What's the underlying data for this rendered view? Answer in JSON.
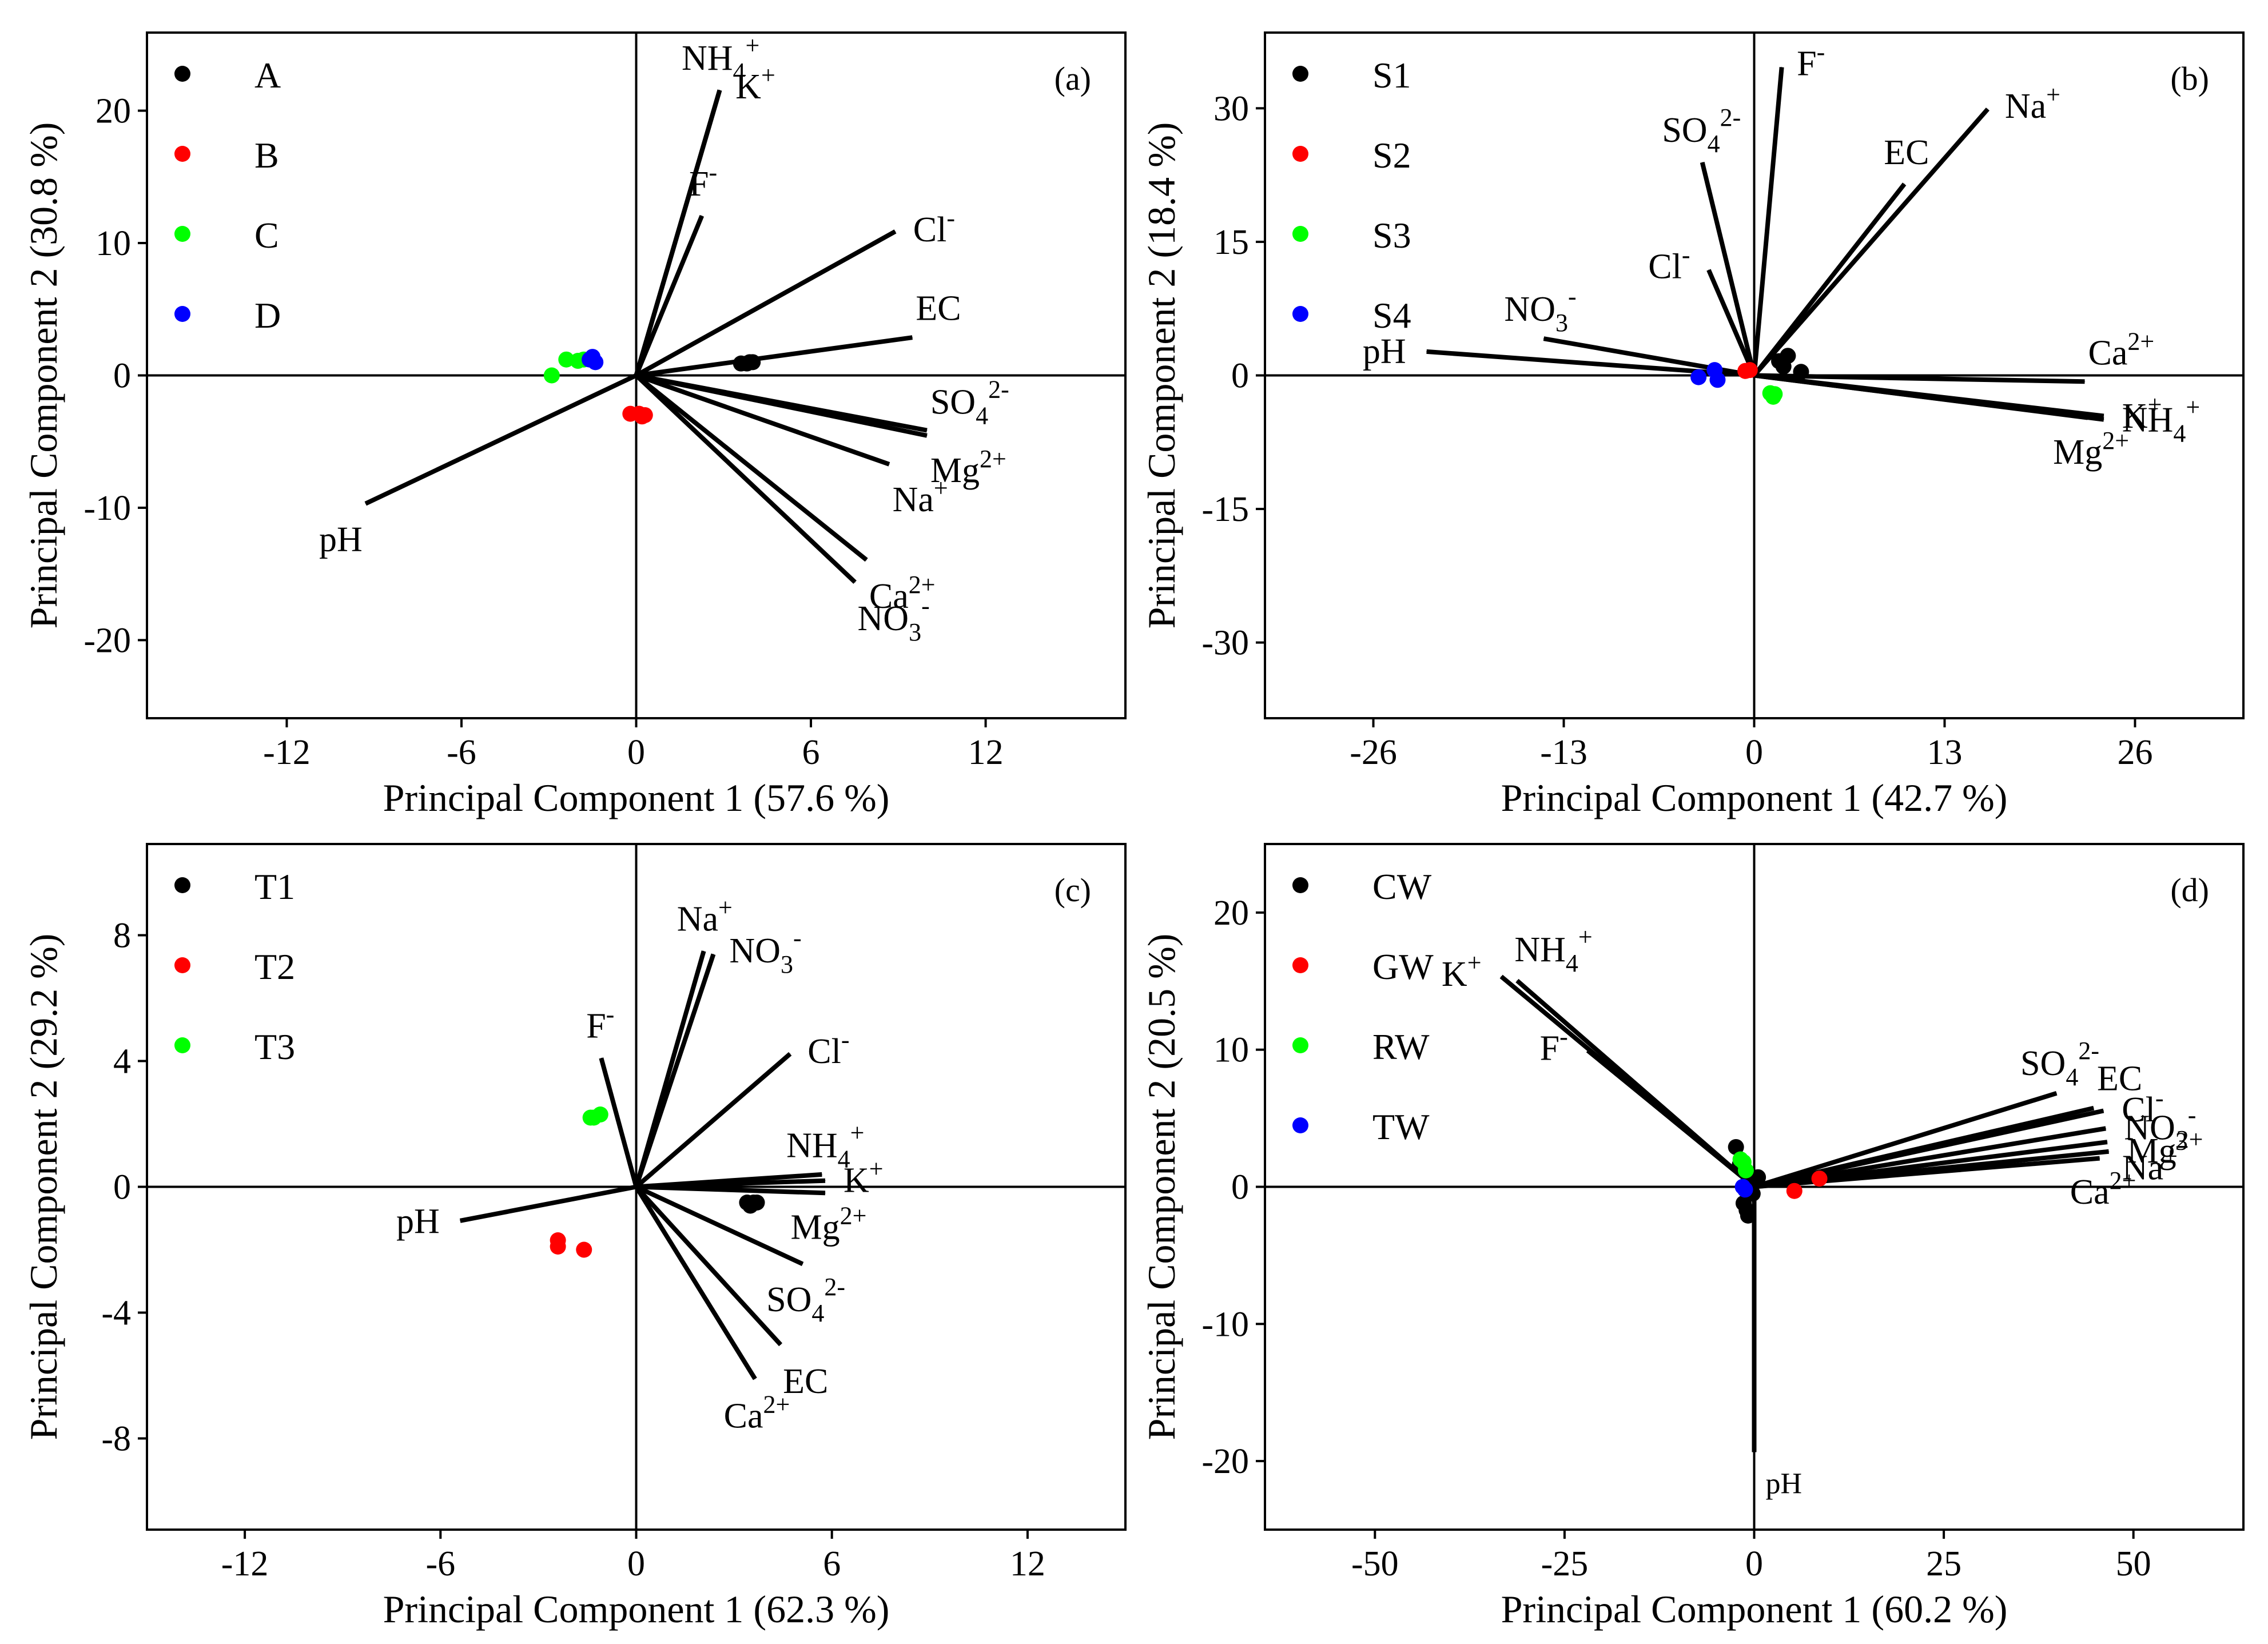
{
  "chart_data": [
    {
      "type": "scatter",
      "panel": "(a)",
      "xlabel": "Principal Component 1 (57.6 %)",
      "ylabel": "Principal Component 2 (30.8 %)",
      "xlim": [
        -16.8,
        16.8
      ],
      "ylim": [
        -25.9,
        25.9
      ],
      "xticks": [
        -12,
        -6,
        0,
        6,
        12
      ],
      "yticks": [
        -20,
        -10,
        0,
        10,
        20
      ],
      "xtick_labels": [
        "-12",
        "-6",
        "0",
        "6",
        "12"
      ],
      "ytick_labels": [
        "-20",
        "-10",
        "0",
        "10",
        "20"
      ],
      "legend_position": "top-left",
      "series": [
        {
          "name": "A",
          "color": "#000000",
          "points": [
            [
              3.6,
              0.9
            ],
            [
              3.9,
              1.0
            ],
            [
              3.8,
              0.9
            ],
            [
              4.0,
              1.0
            ]
          ]
        },
        {
          "name": "B",
          "color": "#ff0000",
          "points": [
            [
              -0.2,
              -2.9
            ],
            [
              0.2,
              -3.1
            ],
            [
              0.3,
              -3.0
            ],
            [
              0.1,
              -2.9
            ]
          ]
        },
        {
          "name": "C",
          "color": "#00ff00",
          "points": [
            [
              -2.9,
              0.0
            ],
            [
              -2.4,
              1.2
            ],
            [
              -2.0,
              1.1
            ],
            [
              -1.8,
              1.2
            ]
          ]
        },
        {
          "name": "D",
          "color": "#0000ff",
          "points": [
            [
              -1.6,
              1.2
            ],
            [
              -1.5,
              1.4
            ],
            [
              -1.4,
              1.0
            ]
          ]
        }
      ],
      "loadings": [
        {
          "label": "pH",
          "sup": "",
          "sub": "",
          "x": -9.4,
          "y": -9.8,
          "label_anchor": "end",
          "label_dir": "below"
        },
        {
          "label": "NH",
          "sub": "4",
          "sup": "+",
          "x": 2.9,
          "y": 21.8,
          "label_anchor": "middle",
          "label_dir": "above"
        },
        {
          "label": "K",
          "sup": "+",
          "sub": "",
          "x": 2.9,
          "y": 21.8,
          "label_anchor": "start",
          "label_dir": "right"
        },
        {
          "label": "F",
          "sup": "-",
          "sub": "",
          "x": 2.3,
          "y": 12.3,
          "label_anchor": "middle",
          "label_dir": "above"
        },
        {
          "label": "Cl",
          "sup": "-",
          "sub": "",
          "x": 9.0,
          "y": 11.0,
          "label_anchor": "start",
          "label_dir": "right"
        },
        {
          "label": "EC",
          "sup": "",
          "sub": "",
          "x": 9.6,
          "y": 2.9,
          "label_anchor": "start",
          "label_dir": "above"
        },
        {
          "label": "SO",
          "sub": "4",
          "sup": "2-",
          "x": 10.1,
          "y": -4.2,
          "label_anchor": "start",
          "label_dir": "above"
        },
        {
          "label": "Mg",
          "sup": "2+",
          "sub": "",
          "x": 10.1,
          "y": -4.6,
          "label_anchor": "start",
          "label_dir": "below"
        },
        {
          "label": "Na",
          "sup": "+",
          "sub": "",
          "x": 8.8,
          "y": -6.8,
          "label_anchor": "start",
          "label_dir": "below"
        },
        {
          "label": "Ca",
          "sup": "2+",
          "sub": "",
          "x": 8.0,
          "y": -14.1,
          "label_anchor": "start",
          "label_dir": "below"
        },
        {
          "label": "NO",
          "sub": "3",
          "sup": "-",
          "x": 7.6,
          "y": -15.8,
          "label_anchor": "start",
          "label_dir": "below"
        }
      ]
    },
    {
      "type": "scatter",
      "panel": "(b)",
      "xlabel": "Principal Component 1 (42.7 %)",
      "ylabel": "Principal Component 2 (18.4 %)",
      "xlim": [
        -33.4,
        33.4
      ],
      "ylim": [
        -38.5,
        38.5
      ],
      "xticks": [
        -26,
        -13,
        0,
        13,
        26
      ],
      "yticks": [
        -30,
        -15,
        0,
        15,
        30
      ],
      "xtick_labels": [
        "-26",
        "-13",
        "0",
        "13",
        "26"
      ],
      "ytick_labels": [
        "-30",
        "-15",
        "0",
        "15",
        "30"
      ],
      "legend_position": "top-left",
      "series": [
        {
          "name": "S1",
          "color": "#000000",
          "points": [
            [
              1.7,
              1.6
            ],
            [
              2.3,
              2.2
            ],
            [
              3.2,
              0.4
            ],
            [
              2.0,
              1.0
            ]
          ]
        },
        {
          "name": "S2",
          "color": "#ff0000",
          "points": [
            [
              -0.6,
              0.5
            ],
            [
              -0.3,
              0.6
            ]
          ]
        },
        {
          "name": "S3",
          "color": "#00ff00",
          "points": [
            [
              1.1,
              -2.0
            ],
            [
              1.3,
              -2.4
            ],
            [
              1.4,
              -2.1
            ]
          ]
        },
        {
          "name": "S4",
          "color": "#0000ff",
          "points": [
            [
              -2.7,
              0.6
            ],
            [
              -3.8,
              -0.2
            ],
            [
              -2.5,
              -0.5
            ]
          ]
        }
      ],
      "loadings": [
        {
          "label": "pH",
          "sup": "",
          "sub": "",
          "x": -22.6,
          "y": 2.7,
          "label_anchor": "end",
          "label_dir": "left"
        },
        {
          "label": "NO",
          "sub": "3",
          "sup": "-",
          "x": -14.6,
          "y": 4.2,
          "label_anchor": "middle",
          "label_dir": "above"
        },
        {
          "label": "F",
          "sup": "-",
          "sub": "",
          "x": 1.9,
          "y": 35.0,
          "label_anchor": "start",
          "label_dir": "right"
        },
        {
          "label": "SO",
          "sub": "4",
          "sup": "2-",
          "x": -3.6,
          "y": 24.3,
          "label_anchor": "middle",
          "label_dir": "above"
        },
        {
          "label": "Cl",
          "sup": "-",
          "sub": "",
          "x": -3.2,
          "y": 12.2,
          "label_anchor": "end",
          "label_dir": "left"
        },
        {
          "label": "Na",
          "sup": "+",
          "sub": "",
          "x": 16.1,
          "y": 30.2,
          "label_anchor": "start",
          "label_dir": "right"
        },
        {
          "label": "EC",
          "sup": "",
          "sub": "",
          "x": 10.4,
          "y": 21.8,
          "label_anchor": "middle",
          "label_dir": "above"
        },
        {
          "label": "Ca",
          "sup": "2+",
          "sub": "",
          "x": 22.8,
          "y": -0.7,
          "label_anchor": "start",
          "label_dir": "above"
        },
        {
          "label": "K",
          "sup": "+",
          "sub": "",
          "x": 24.1,
          "y": -4.6,
          "label_anchor": "start",
          "label_dir": "right"
        },
        {
          "label": "NH",
          "sub": "4",
          "sup": "+",
          "x": 24.1,
          "y": -5.0,
          "label_anchor": "start",
          "label_dir": "right"
        },
        {
          "label": "Mg",
          "sup": "2+",
          "sub": "",
          "x": 23.0,
          "y": -4.8,
          "label_anchor": "middle",
          "label_dir": "below"
        }
      ]
    },
    {
      "type": "scatter",
      "panel": "(c)",
      "xlabel": "Principal Component 1 (62.3 %)",
      "ylabel": "Principal Component 2 (29.2 %)",
      "xlim": [
        -15.0,
        15.0
      ],
      "ylim": [
        -10.9,
        10.9
      ],
      "xticks": [
        -12,
        -6,
        0,
        6,
        12
      ],
      "yticks": [
        -8,
        -4,
        0,
        4,
        8
      ],
      "xtick_labels": [
        "-12",
        "-6",
        "0",
        "6",
        "12"
      ],
      "ytick_labels": [
        "-8",
        "-4",
        "0",
        "4",
        "8"
      ],
      "legend_position": "top-left",
      "series": [
        {
          "name": "T1",
          "color": "#000000",
          "points": [
            [
              3.4,
              -0.5
            ],
            [
              3.6,
              -0.5
            ],
            [
              3.5,
              -0.6
            ],
            [
              3.7,
              -0.5
            ]
          ]
        },
        {
          "name": "T2",
          "color": "#ff0000",
          "points": [
            [
              -2.4,
              -1.7
            ],
            [
              -2.4,
              -1.9
            ],
            [
              -1.6,
              -2.0
            ]
          ]
        },
        {
          "name": "T3",
          "color": "#00ff00",
          "points": [
            [
              -1.4,
              2.2
            ],
            [
              -1.1,
              2.3
            ],
            [
              -1.3,
              2.2
            ]
          ]
        }
      ],
      "loadings": [
        {
          "label": "pH",
          "sup": "",
          "sub": "",
          "x": -5.5,
          "y": -1.1,
          "label_anchor": "end",
          "label_dir": "left"
        },
        {
          "label": "F",
          "sup": "-",
          "sub": "",
          "x": -1.1,
          "y": 4.2,
          "label_anchor": "middle",
          "label_dir": "above"
        },
        {
          "label": "Na",
          "sup": "+",
          "sub": "",
          "x": 2.1,
          "y": 7.6,
          "label_anchor": "middle",
          "label_dir": "above"
        },
        {
          "label": "NO",
          "sub": "3",
          "sup": "-",
          "x": 2.4,
          "y": 7.5,
          "label_anchor": "start",
          "label_dir": "right"
        },
        {
          "label": "Cl",
          "sup": "-",
          "sub": "",
          "x": 4.8,
          "y": 4.3,
          "label_anchor": "start",
          "label_dir": "right"
        },
        {
          "label": "NH",
          "sub": "4",
          "sup": "+",
          "x": 5.8,
          "y": 0.4,
          "label_anchor": "middle",
          "label_dir": "above"
        },
        {
          "label": "K",
          "sup": "+",
          "sub": "",
          "x": 5.9,
          "y": 0.2,
          "label_anchor": "start",
          "label_dir": "right"
        },
        {
          "label": "Mg",
          "sup": "2+",
          "sub": "",
          "x": 5.9,
          "y": -0.2,
          "label_anchor": "middle",
          "label_dir": "below"
        },
        {
          "label": "SO",
          "sub": "4",
          "sup": "2-",
          "x": 5.2,
          "y": -2.5,
          "label_anchor": "middle",
          "label_dir": "below"
        },
        {
          "label": "EC",
          "sup": "",
          "sub": "",
          "x": 4.5,
          "y": -5.1,
          "label_anchor": "start",
          "label_dir": "below"
        },
        {
          "label": "Ca",
          "sup": "2+",
          "sub": "",
          "x": 3.7,
          "y": -6.2,
          "label_anchor": "middle",
          "label_dir": "below"
        }
      ]
    },
    {
      "type": "scatter",
      "panel": "(d)",
      "xlabel": "Principal Component 1 (60.2 %)",
      "ylabel": "Principal Component 2 (20.5 %)",
      "xlim": [
        -64.5,
        64.5
      ],
      "ylim": [
        -25.0,
        25.0
      ],
      "xticks": [
        -50,
        -25,
        0,
        25,
        50
      ],
      "yticks": [
        -20,
        -10,
        0,
        10,
        20
      ],
      "xtick_labels": [
        "-50",
        "-25",
        "0",
        "25",
        "50"
      ],
      "ytick_labels": [
        "-20",
        "-10",
        "0",
        "10",
        "20"
      ],
      "legend_position": "top-left",
      "series": [
        {
          "name": "CW",
          "color": "#000000",
          "points": [
            [
              -2.4,
              2.9
            ],
            [
              -1.9,
              1.6
            ],
            [
              -1.0,
              1.1
            ],
            [
              -0.5,
              0.5
            ],
            [
              -1.4,
              -1.2
            ],
            [
              -1.0,
              -1.7
            ],
            [
              -0.8,
              -2.1
            ],
            [
              -0.2,
              -0.5
            ],
            [
              0.5,
              0.7
            ]
          ]
        },
        {
          "name": "GW",
          "color": "#ff0000",
          "points": [
            [
              5.3,
              -0.3
            ],
            [
              8.6,
              0.6
            ]
          ]
        },
        {
          "name": "RW",
          "color": "#00ff00",
          "points": [
            [
              -1.4,
              1.8
            ],
            [
              -1.1,
              1.2
            ],
            [
              -1.8,
              2.0
            ]
          ]
        },
        {
          "name": "TW",
          "color": "#0000ff",
          "points": [
            [
              -1.5,
              0.0
            ],
            [
              -1.2,
              -0.2
            ]
          ]
        }
      ],
      "loadings": [
        {
          "label": "pH",
          "sup": "",
          "sub": "",
          "x": 0.0,
          "y": -19.6,
          "label_anchor": "start",
          "label_dir": "below-right",
          "small": true
        },
        {
          "label": "K",
          "sup": "+",
          "sub": "",
          "x": -33.7,
          "y": 15.5,
          "label_anchor": "end",
          "label_dir": "left"
        },
        {
          "label": "NH",
          "sub": "4",
          "sup": "+",
          "x": -31.6,
          "y": 15.2,
          "label_anchor": "start",
          "label_dir": "above"
        },
        {
          "label": "F",
          "sup": "-",
          "sub": "",
          "x": -22.3,
          "y": 10.1,
          "label_anchor": "end",
          "label_dir": "left"
        },
        {
          "label": "SO",
          "sub": "4",
          "sup": "2-",
          "x": 40.3,
          "y": 6.9,
          "label_anchor": "middle",
          "label_dir": "above"
        },
        {
          "label": "EC",
          "sup": "",
          "sub": "",
          "x": 45.2,
          "y": 5.8,
          "label_anchor": "start",
          "label_dir": "above"
        },
        {
          "label": "Cl",
          "sup": "-",
          "sub": "",
          "x": 46.5,
          "y": 5.6,
          "label_anchor": "start",
          "label_dir": "right"
        },
        {
          "label": "NO",
          "sub": "3",
          "sup": "-",
          "x": 46.8,
          "y": 4.3,
          "label_anchor": "start",
          "label_dir": "right"
        },
        {
          "label": "Mg",
          "sup": "2+",
          "sub": "",
          "x": 47.2,
          "y": 2.6,
          "label_anchor": "start",
          "label_dir": "right"
        },
        {
          "label": "Ca",
          "sup": "2+",
          "sub": "",
          "x": 46.0,
          "y": 2.1,
          "label_anchor": "middle",
          "label_dir": "below"
        },
        {
          "label": "Na",
          "sup": "+",
          "sub": "",
          "x": 47.0,
          "y": 3.3,
          "label_anchor": "start",
          "label_dir": "below-right"
        }
      ]
    }
  ]
}
